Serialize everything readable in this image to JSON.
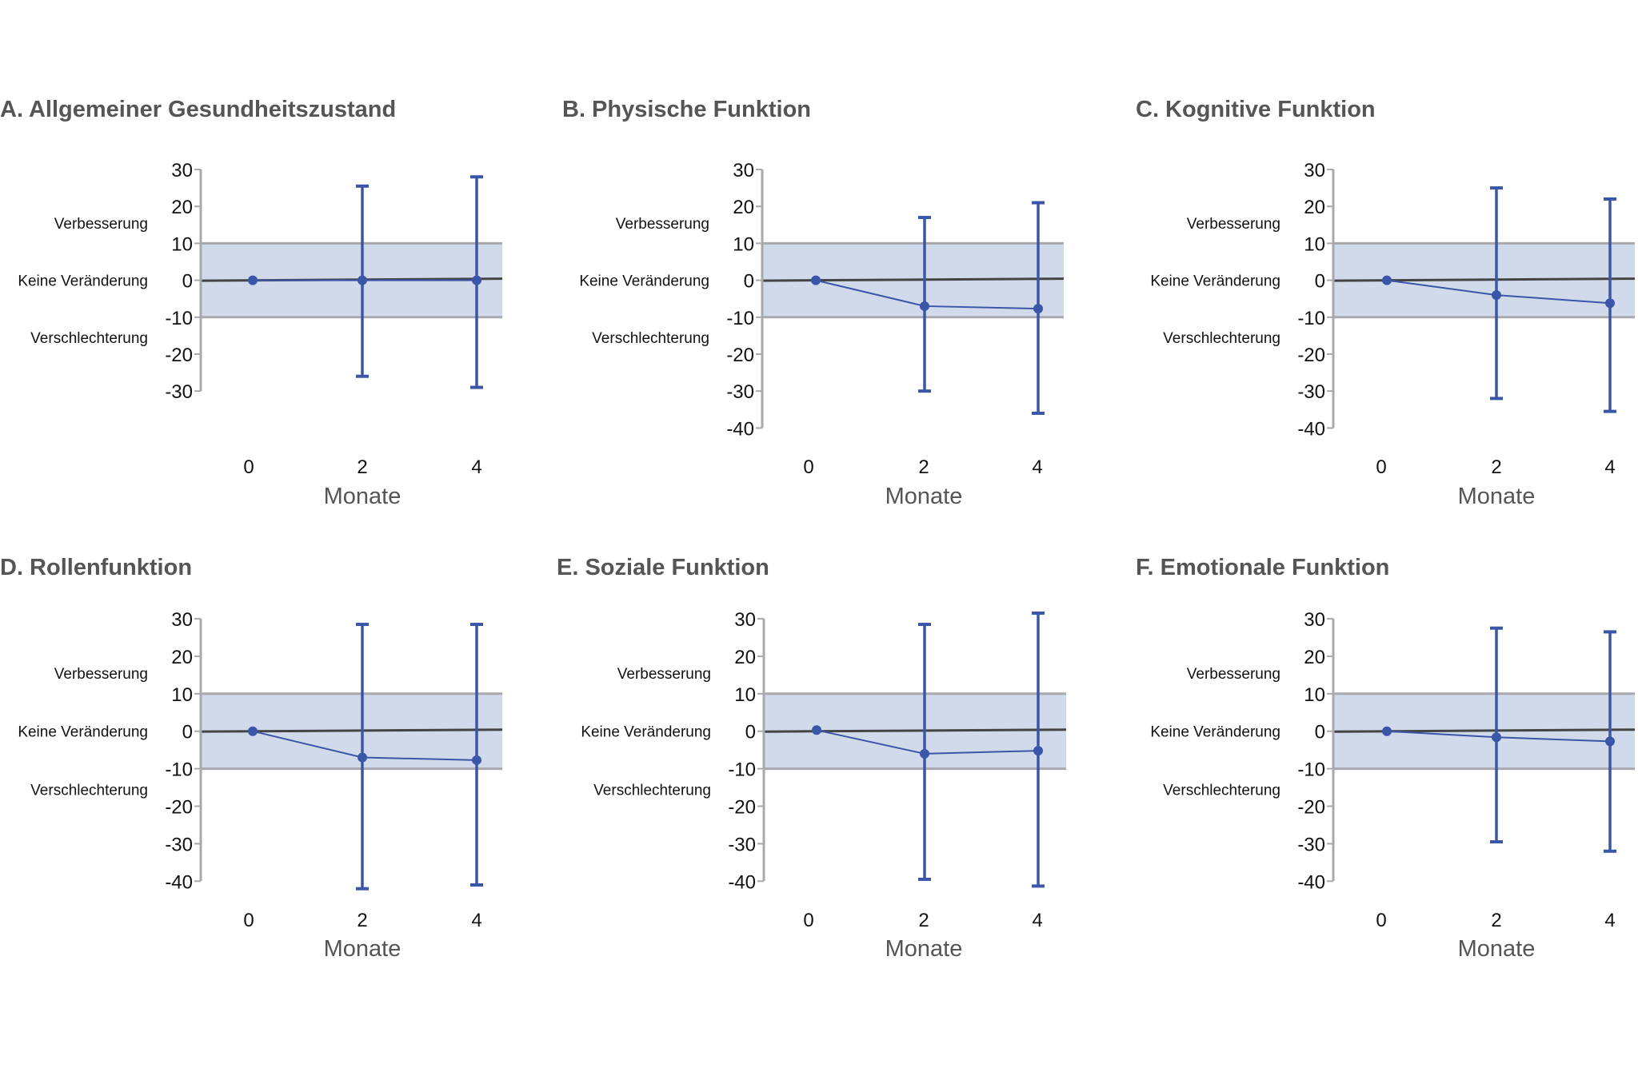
{
  "colors": {
    "series": "#3a56a8",
    "band": "#d1daeb",
    "band_edge": "#a9a9ad",
    "axis": "#a9a9ad",
    "zero_line": "#444444",
    "title": "#555555"
  },
  "chart_data": [
    {
      "type": "line",
      "title": "A. Allgemeiner Gesundheitszustand",
      "xlabel": "Monate",
      "x": [
        0,
        2,
        4
      ],
      "values": [
        0,
        0,
        0
      ],
      "ci_upper": [
        null,
        25.5,
        28
      ],
      "ci_lower": [
        null,
        -26,
        -29
      ],
      "ylim": [
        -30,
        30
      ],
      "yticks": [
        30,
        20,
        10,
        0,
        -10,
        -20,
        -30
      ],
      "band": [
        -10,
        10
      ],
      "band_labels": {
        "above": "Verbesserung",
        "middle": "Keine Veränderung",
        "below": "Verschlechterung"
      },
      "grid": false,
      "legend": "none"
    },
    {
      "type": "line",
      "title": "B. Physische Funktion",
      "xlabel": "Monate",
      "x": [
        0,
        2,
        4
      ],
      "values": [
        0,
        -7,
        -7.7
      ],
      "ci_upper": [
        null,
        17,
        21
      ],
      "ci_lower": [
        null,
        -30,
        -36
      ],
      "ylim": [
        -40,
        30
      ],
      "yticks": [
        30,
        20,
        10,
        0,
        -10,
        -20,
        -30,
        -40
      ],
      "band": [
        -10,
        10
      ],
      "band_labels": {
        "above": "Verbesserung",
        "middle": "Keine Veränderung",
        "below": "Verschlechterung"
      },
      "grid": false,
      "legend": "none"
    },
    {
      "type": "line",
      "title": "C. Kognitive Funktion",
      "xlabel": "Monate",
      "x": [
        0,
        2,
        4
      ],
      "values": [
        0,
        -4,
        -6.2
      ],
      "ci_upper": [
        null,
        25,
        22
      ],
      "ci_lower": [
        null,
        -32,
        -35.5
      ],
      "ylim": [
        -40,
        30
      ],
      "yticks": [
        30,
        20,
        10,
        0,
        -10,
        -20,
        -30,
        -40
      ],
      "band": [
        -10,
        10
      ],
      "band_labels": {
        "above": "Verbesserung",
        "middle": "Keine Veränderung",
        "below": "Verschlechterung"
      },
      "grid": false,
      "legend": "none"
    },
    {
      "type": "line",
      "title": "D. Rollenfunktion",
      "xlabel": "Monate",
      "x": [
        0,
        2,
        4
      ],
      "values": [
        0,
        -7,
        -7.7
      ],
      "ci_upper": [
        null,
        28.5,
        28.5
      ],
      "ci_lower": [
        null,
        -42,
        -41
      ],
      "ylim": [
        -40,
        30
      ],
      "yticks": [
        30,
        20,
        10,
        0,
        -10,
        -20,
        -30,
        -40
      ],
      "band": [
        -10,
        10
      ],
      "band_labels": {
        "above": "Verbesserung",
        "middle": "Keine Veränderung",
        "below": "Verschlechterung"
      },
      "grid": false,
      "legend": "none"
    },
    {
      "type": "line",
      "title": "E. Soziale Funktion",
      "xlabel": "Monate",
      "x": [
        0,
        2,
        4
      ],
      "values": [
        0.3,
        -6,
        -5.2
      ],
      "ci_upper": [
        null,
        28.5,
        31.5
      ],
      "ci_lower": [
        null,
        -39.5,
        -41.3
      ],
      "ylim": [
        -40,
        30
      ],
      "yticks": [
        30,
        20,
        10,
        0,
        -10,
        -20,
        -30,
        -40
      ],
      "band": [
        -10,
        10
      ],
      "band_labels": {
        "above": "Verbesserung",
        "middle": "Keine Veränderung",
        "below": "Verschlechterung"
      },
      "grid": false,
      "legend": "none"
    },
    {
      "type": "line",
      "title": "F. Emotionale Funktion",
      "xlabel": "Monate",
      "x": [
        0,
        2,
        4
      ],
      "values": [
        0,
        -1.6,
        -2.7
      ],
      "ci_upper": [
        null,
        27.5,
        26.5
      ],
      "ci_lower": [
        null,
        -29.5,
        -32
      ],
      "ylim": [
        -40,
        30
      ],
      "yticks": [
        30,
        20,
        10,
        0,
        -10,
        -20,
        -30,
        -40
      ],
      "band": [
        -10,
        10
      ],
      "band_labels": {
        "above": "Verbesserung",
        "middle": "Keine Veränderung",
        "below": "Verschlechterung"
      },
      "grid": false,
      "legend": "none"
    }
  ]
}
